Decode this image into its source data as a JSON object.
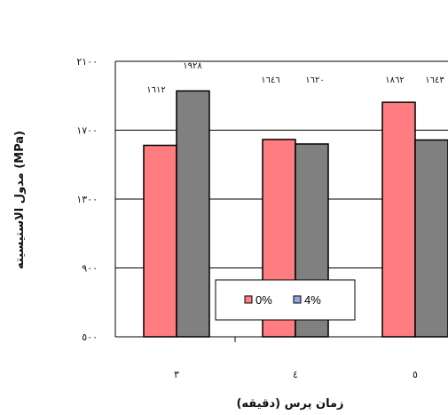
{
  "chart_data": {
    "type": "bar",
    "categories": [
      "٣",
      "٤",
      "٥"
    ],
    "series": [
      {
        "name": "0%",
        "color": "#ff7c80",
        "values": [
          1612,
          1646,
          1862
        ],
        "labels": [
          "١٦١٢",
          "١٦٤٦",
          "١٨٦٢"
        ]
      },
      {
        "name": "4%",
        "color": "#808080",
        "values": [
          1928,
          1620,
          1643
        ],
        "labels": [
          "١٩٢٨",
          "١٦٢٠",
          "١٦٤٣"
        ]
      }
    ],
    "ylim": [
      500,
      2100
    ],
    "yticks": [
      {
        "value": 500,
        "label": "٥٠٠"
      },
      {
        "value": 900,
        "label": "٩٠٠"
      },
      {
        "value": 1300,
        "label": "١٣٠٠"
      },
      {
        "value": 1700,
        "label": "١٧٠٠"
      },
      {
        "value": 2100,
        "label": "٢١٠٠"
      }
    ],
    "xlabel": "زمان پرس (دقيقه)",
    "ylabel": "مدول الاستيسيته (MPa)",
    "grid": true,
    "legend": "inside-bottom"
  }
}
